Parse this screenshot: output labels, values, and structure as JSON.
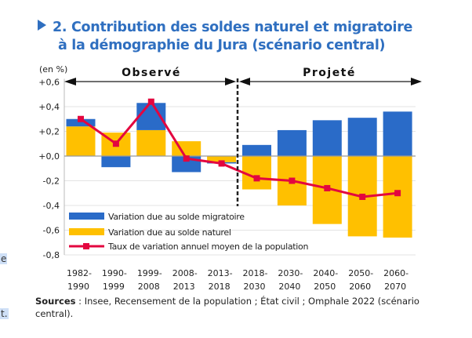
{
  "title": {
    "line1": "2. Contribution des soldes naturel et migratoire",
    "line2": "à la démographie du Jura (scénario central)"
  },
  "sources": {
    "label": "Sources",
    "text": " : Insee, Recensement de la population ; État civil ; Omphale 2022 (scénario central)."
  },
  "edge_text": [
    "e",
    "t."
  ],
  "colors": {
    "migratoire": "#2a6bc8",
    "naturel": "#ffc000",
    "taux": "#e3063f",
    "title": "#2f6fc0"
  },
  "chart_data": {
    "type": "bar",
    "unit_label": "(en %)",
    "periods": {
      "observed": "Observé",
      "projected": "Projeté"
    },
    "categories": [
      [
        "1982-",
        "1990"
      ],
      [
        "1990-",
        "1999"
      ],
      [
        "1999-",
        "2008"
      ],
      [
        "2008-",
        "2013"
      ],
      [
        "2013-",
        "2018"
      ],
      [
        "2018-",
        "2030"
      ],
      [
        "2030-",
        "2040"
      ],
      [
        "2040-",
        "2050"
      ],
      [
        "2050-",
        "2060"
      ],
      [
        "2060-",
        "2070"
      ]
    ],
    "ylim": [
      -0.8,
      0.6
    ],
    "yticks": [
      "+0,6",
      "+0,4",
      "+0,2",
      "+0,0",
      "-0,2",
      "-0,4",
      "-0,6",
      "-0,8"
    ],
    "ytick_values": [
      0.6,
      0.4,
      0.2,
      0,
      -0.2,
      -0.4,
      -0.6,
      -0.8
    ],
    "grid": true,
    "legend_position": "bottom-left inside",
    "series": [
      {
        "name": "Variation due au solde migratoire",
        "kind": "stacked-bar",
        "values": [
          0.06,
          -0.09,
          0.22,
          -0.13,
          -0.01,
          0.09,
          0.21,
          0.29,
          0.31,
          0.36
        ]
      },
      {
        "name": "Variation due au solde naturel",
        "kind": "stacked-bar",
        "values": [
          0.24,
          0.19,
          0.21,
          0.12,
          -0.05,
          -0.27,
          -0.4,
          -0.55,
          -0.65,
          -0.66
        ]
      },
      {
        "name": "Taux de variation annuel moyen de la population",
        "kind": "line",
        "values": [
          0.3,
          0.1,
          0.44,
          -0.02,
          -0.06,
          -0.18,
          -0.2,
          -0.26,
          -0.33,
          -0.3
        ]
      }
    ]
  }
}
